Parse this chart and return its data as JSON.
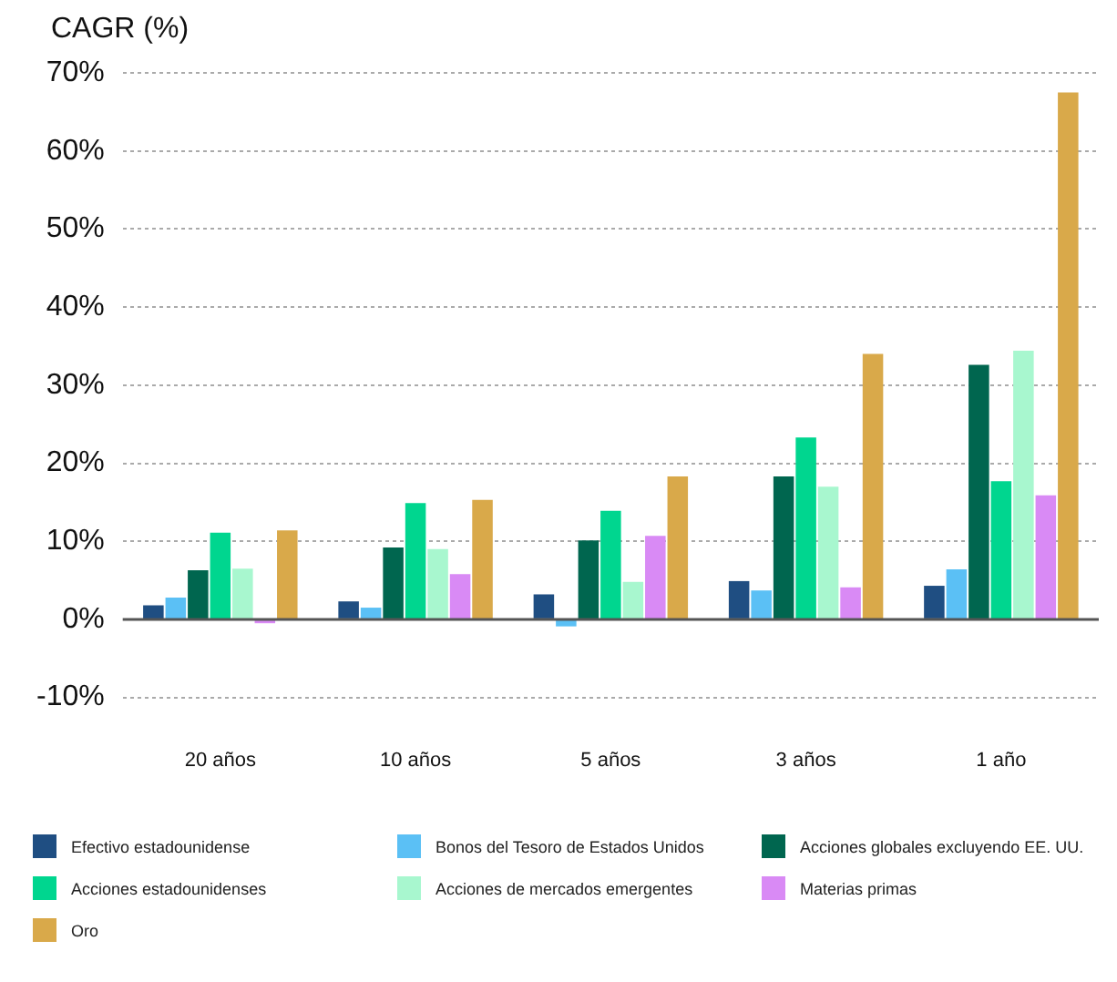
{
  "chart_data": {
    "type": "bar",
    "ylabel": "CAGR (%)",
    "categories": [
      "20 años",
      "10 años",
      "5 años",
      "3 años",
      "1 año"
    ],
    "series": [
      {
        "name": "Efectivo estadounidense",
        "color": "#1f4e82",
        "values": [
          1.8,
          2.3,
          3.2,
          4.9,
          4.3
        ]
      },
      {
        "name": "Bonos del Tesoro de Estados Unidos",
        "color": "#5bc0f5",
        "values": [
          2.8,
          1.5,
          -0.9,
          3.7,
          6.4
        ]
      },
      {
        "name": "Acciones globales excluyendo EE. UU.",
        "color": "#00664f",
        "values": [
          6.3,
          9.2,
          10.1,
          18.3,
          32.6
        ]
      },
      {
        "name": "Acciones estadounidenses",
        "color": "#00d68f",
        "values": [
          11.1,
          14.9,
          13.9,
          23.3,
          17.7
        ]
      },
      {
        "name": "Acciones de mercados emergentes",
        "color": "#a8f7cf",
        "values": [
          6.5,
          9.0,
          4.8,
          17.0,
          34.4
        ]
      },
      {
        "name": "Materias primas",
        "color": "#d98af5",
        "values": [
          -0.5,
          5.8,
          10.7,
          4.1,
          15.9
        ]
      },
      {
        "name": "Oro",
        "color": "#d9a94a",
        "values": [
          11.4,
          15.3,
          18.3,
          34.0,
          67.5
        ]
      }
    ],
    "ylim": [
      -10,
      70
    ],
    "ref_lines": [
      {
        "axis": "y",
        "value": 0,
        "color": "#555555"
      }
    ],
    "yticks": [
      {
        "value": -10,
        "label": "-10%"
      },
      {
        "value": 0,
        "label": "0%"
      },
      {
        "value": 10,
        "label": "10%"
      },
      {
        "value": 20,
        "label": "20%"
      },
      {
        "value": 30,
        "label": "30%"
      },
      {
        "value": 40,
        "label": "40%"
      },
      {
        "value": 50,
        "label": "50%"
      },
      {
        "value": 60,
        "label": "60%"
      },
      {
        "value": 70,
        "label": "70%"
      }
    ],
    "grid": "y",
    "legend": "bottom"
  }
}
